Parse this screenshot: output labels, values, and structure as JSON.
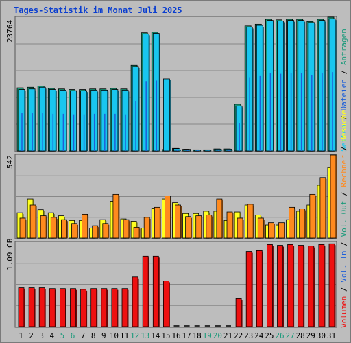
{
  "title": "Tages-Statistik im Monat Juli 2025",
  "colors": {
    "background": "#bdbdbd",
    "title": "#0a3ed0",
    "grid": "#888888",
    "hits": "#1a9a7a",
    "files": "#1e5fd8",
    "pages": "#19c6ef",
    "visits": "#ffff20",
    "sites": "#ff8a1e",
    "kbytes": "#ee1010",
    "weekend_day": "#1a9a7a",
    "weekday": "#000000"
  },
  "panel_labels": {
    "top": [
      "Anfragen",
      "Dateien",
      "Seiten"
    ],
    "middle": [
      "Besuche",
      "Rechner",
      "Vol. Out"
    ],
    "bottom": [
      "Vol. In",
      "Volumen"
    ]
  },
  "chart_data": [
    {
      "type": "bar",
      "panel": "top",
      "ymax_label": "23764",
      "ylim": [
        0,
        23764
      ],
      "categories": [
        "1",
        "2",
        "3",
        "4",
        "5",
        "6",
        "7",
        "8",
        "9",
        "10",
        "11",
        "12",
        "13",
        "14",
        "15",
        "16",
        "17",
        "18",
        "19",
        "20",
        "21",
        "22",
        "23",
        "24",
        "25",
        "26",
        "27",
        "28",
        "29",
        "30",
        "31"
      ],
      "weekend_days": [
        "5",
        "6",
        "12",
        "13",
        "19",
        "20",
        "26",
        "27"
      ],
      "series": [
        {
          "name": "Anfragen",
          "values": [
            11200,
            11300,
            11500,
            11100,
            11000,
            10900,
            10900,
            11000,
            11000,
            11100,
            11000,
            15200,
            21000,
            21100,
            250,
            450,
            300,
            200,
            200,
            350,
            350,
            8300,
            22200,
            22500,
            23400,
            23300,
            23400,
            23400,
            23000,
            23400,
            23764
          ]
        },
        {
          "name": "Dateien",
          "values": [
            6700,
            6700,
            6800,
            6600,
            6600,
            6500,
            6500,
            6600,
            6600,
            6600,
            6500,
            8900,
            12400,
            12500,
            150,
            250,
            180,
            120,
            120,
            200,
            200,
            4900,
            13100,
            13300,
            13800,
            13700,
            13800,
            13800,
            13500,
            13800,
            14000
          ]
        },
        {
          "name": "Seiten",
          "values": [
            10900,
            11000,
            11300,
            10900,
            10800,
            10700,
            10700,
            10800,
            10800,
            10900,
            10800,
            15000,
            20800,
            20900,
            12800,
            400,
            280,
            180,
            180,
            320,
            320,
            8000,
            22000,
            22300,
            23200,
            23100,
            23200,
            23200,
            22800,
            23200,
            23500
          ]
        }
      ]
    },
    {
      "type": "bar",
      "panel": "middle",
      "ymax_label": "542",
      "ylim": [
        0,
        542
      ],
      "categories": [
        "1",
        "2",
        "3",
        "4",
        "5",
        "6",
        "7",
        "8",
        "9",
        "10",
        "11",
        "12",
        "13",
        "14",
        "15",
        "16",
        "17",
        "18",
        "19",
        "20",
        "21",
        "22",
        "23",
        "24",
        "25",
        "26",
        "27",
        "28",
        "29",
        "30",
        "31"
      ],
      "series": [
        {
          "name": "Besuche",
          "values": [
            165,
            255,
            185,
            165,
            145,
            115,
            115,
            65,
            120,
            240,
            125,
            110,
            65,
            195,
            255,
            230,
            160,
            160,
            175,
            175,
            115,
            170,
            215,
            150,
            85,
            85,
            120,
            175,
            215,
            345,
            460
          ]
        },
        {
          "name": "Rechner",
          "values": [
            130,
            215,
            145,
            135,
            120,
            95,
            155,
            80,
            95,
            285,
            120,
            70,
            135,
            200,
            275,
            215,
            140,
            145,
            150,
            255,
            170,
            130,
            220,
            130,
            100,
            100,
            200,
            190,
            285,
            395,
            542
          ]
        }
      ]
    },
    {
      "type": "bar",
      "panel": "bottom",
      "ymax_label": "1.09 GB",
      "ylim": [
        0,
        1.09
      ],
      "categories": [
        "1",
        "2",
        "3",
        "4",
        "5",
        "6",
        "7",
        "8",
        "9",
        "10",
        "11",
        "12",
        "13",
        "14",
        "15",
        "16",
        "17",
        "18",
        "19",
        "20",
        "21",
        "22",
        "23",
        "24",
        "25",
        "26",
        "27",
        "28",
        "29",
        "30",
        "31"
      ],
      "series": [
        {
          "name": "Volumen",
          "values": [
            0.5,
            0.5,
            0.5,
            0.49,
            0.49,
            0.49,
            0.48,
            0.49,
            0.49,
            0.49,
            0.49,
            0.64,
            0.91,
            0.91,
            0.59,
            0.01,
            0.01,
            0.01,
            0.01,
            0.01,
            0.01,
            0.36,
            0.97,
            0.98,
            1.06,
            1.05,
            1.06,
            1.05,
            1.04,
            1.06,
            1.07
          ]
        }
      ]
    }
  ]
}
